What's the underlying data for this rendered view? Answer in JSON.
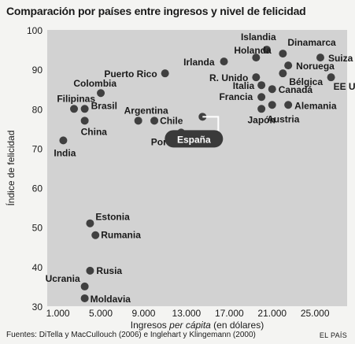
{
  "title": "Comparación por países entre ingresos y nivel de felicidad",
  "source": "Fuentes: DiTella y MacCullouch (2006) e Inglehart y Klingemann (2000)",
  "brand": "EL PAÍS",
  "colors": {
    "plot_bg": "#d2d2d2",
    "dot": "#404040",
    "highlight_bg": "#3a3a3a",
    "highlight_text": "#ffffff"
  },
  "chart_data": {
    "type": "scatter",
    "title": "Comparación por países entre ingresos y nivel de felicidad",
    "xlabel_parts": [
      "Ingresos ",
      "per cápita",
      " (en dólares)"
    ],
    "ylabel": "Índice de felicidad",
    "xlim": [
      0,
      28000
    ],
    "ylim": [
      30,
      100
    ],
    "x_ticks": [
      1000,
      5000,
      9000,
      13000,
      17000,
      21000,
      25000
    ],
    "x_tick_labels": [
      "1.000",
      "5.000",
      "9.000",
      "13.000",
      "17.000",
      "21.000",
      "25.000"
    ],
    "y_ticks": [
      30,
      40,
      50,
      60,
      70,
      80,
      90,
      100
    ],
    "y_tick_labels": [
      "30",
      "40",
      "50",
      "60",
      "70",
      "80",
      "90",
      "100"
    ],
    "grid": false,
    "points": [
      {
        "label": "Islandia",
        "x": 20500,
        "y": 95
      },
      {
        "label": "Holanda",
        "x": 19500,
        "y": 93
      },
      {
        "label": "Dinamarca",
        "x": 22000,
        "y": 94
      },
      {
        "label": "Suiza",
        "x": 25500,
        "y": 93
      },
      {
        "label": "Irlanda",
        "x": 16500,
        "y": 92
      },
      {
        "label": "Noruega",
        "x": 22500,
        "y": 91
      },
      {
        "label": "Puerto Rico",
        "x": 11000,
        "y": 89
      },
      {
        "label": "Bélgica",
        "x": 22000,
        "y": 89
      },
      {
        "label": "EE UU",
        "x": 26500,
        "y": 88
      },
      {
        "label": "R. Unido",
        "x": 19500,
        "y": 88
      },
      {
        "label": "Colombia",
        "x": 5000,
        "y": 84
      },
      {
        "label": "Italia",
        "x": 20000,
        "y": 86
      },
      {
        "label": "Canadá",
        "x": 21000,
        "y": 85
      },
      {
        "label": "Filipinas",
        "x": 2500,
        "y": 80
      },
      {
        "label": "Brasil",
        "x": 3500,
        "y": 80
      },
      {
        "label": "Francia",
        "x": 20000,
        "y": 83
      },
      {
        "label": "Alemania",
        "x": 22500,
        "y": 81
      },
      {
        "label": "Argentina",
        "x": 8500,
        "y": 77
      },
      {
        "label": "Chile",
        "x": 10000,
        "y": 77
      },
      {
        "label": "Japón",
        "x": 20000,
        "y": 80
      },
      {
        "label": "Austria",
        "x": 21000,
        "y": 81
      },
      {
        "label": "China",
        "x": 3500,
        "y": 77
      },
      {
        "label": "Portugal",
        "x": 12500,
        "y": 74
      },
      {
        "label": "España",
        "x": 14500,
        "y": 78,
        "highlight": true
      },
      {
        "label": "India",
        "x": 1500,
        "y": 72
      },
      {
        "label": "Estonia",
        "x": 4000,
        "y": 51
      },
      {
        "label": "Rumania",
        "x": 4500,
        "y": 48
      },
      {
        "label": "Rusia",
        "x": 4000,
        "y": 39
      },
      {
        "label": "Ucrania",
        "x": 3500,
        "y": 35
      },
      {
        "label": "Moldavia",
        "x": 3500,
        "y": 32
      }
    ]
  }
}
